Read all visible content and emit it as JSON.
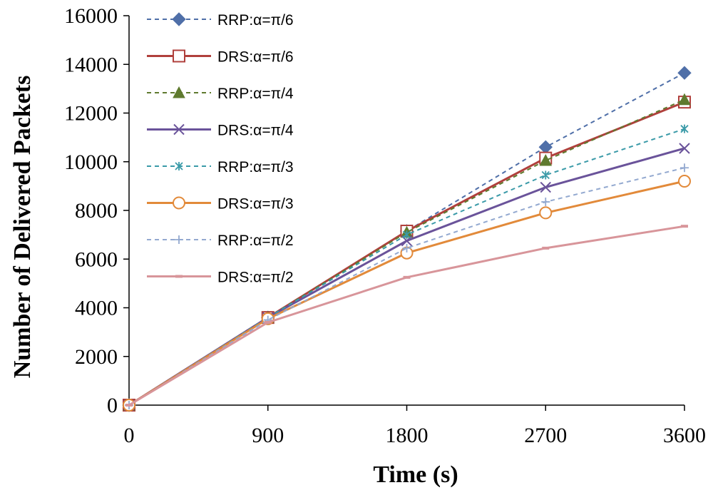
{
  "chart_data": {
    "type": "line",
    "xlabel": "Time (s)",
    "ylabel": "Number of Delivered Packets",
    "x": [
      0,
      900,
      1800,
      2700,
      3600
    ],
    "x_ticks": [
      "0",
      "900",
      "1800",
      "2700",
      "3600"
    ],
    "y_ticks": [
      "0",
      "2000",
      "4000",
      "6000",
      "8000",
      "10000",
      "12000",
      "14000",
      "16000"
    ],
    "xlim": [
      0,
      3600
    ],
    "ylim": [
      0,
      16000
    ],
    "grid": false,
    "legend_position": "top-left",
    "series": [
      {
        "name": "RRP:α=π/6",
        "color": "#4f6fa8",
        "dash": true,
        "marker": "diamond",
        "values": [
          0,
          3600,
          7150,
          10600,
          13650
        ]
      },
      {
        "name": "DRS:α=π/6",
        "color": "#b0403c",
        "dash": false,
        "marker": "square",
        "values": [
          0,
          3600,
          7150,
          10150,
          12450
        ]
      },
      {
        "name": "RRP:α=π/4",
        "color": "#5f7a2e",
        "dash": true,
        "marker": "triangle",
        "values": [
          0,
          3600,
          7100,
          10050,
          12550
        ]
      },
      {
        "name": "DRS:α=π/4",
        "color": "#6a539a",
        "dash": false,
        "marker": "x",
        "values": [
          0,
          3600,
          6750,
          8950,
          10550
        ]
      },
      {
        "name": "RRP:α=π/3",
        "color": "#3a9aa8",
        "dash": true,
        "marker": "star",
        "values": [
          0,
          3600,
          7000,
          9450,
          11350
        ]
      },
      {
        "name": "DRS:α=π/3",
        "color": "#e28a3a",
        "dash": false,
        "marker": "circle",
        "values": [
          0,
          3550,
          6250,
          7900,
          9200
        ]
      },
      {
        "name": "RRP:α=π/2",
        "color": "#93a9d0",
        "dash": true,
        "marker": "plus",
        "values": [
          0,
          3500,
          6450,
          8350,
          9750
        ]
      },
      {
        "name": "DRS:α=π/2",
        "color": "#d8959a",
        "dash": false,
        "marker": "dash",
        "values": [
          0,
          3400,
          5250,
          6450,
          7350
        ]
      }
    ]
  }
}
